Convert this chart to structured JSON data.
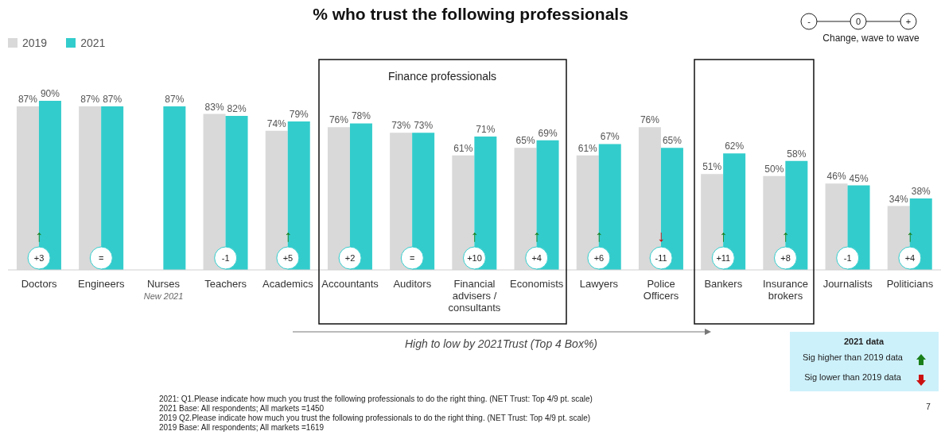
{
  "chart_data": {
    "type": "bar",
    "title": "% who trust the following professionals",
    "categories": [
      "Doctors",
      "Engineers",
      "Nurses",
      "Teachers",
      "Academics",
      "Accountants",
      "Auditors",
      "Financial advisers / consultants",
      "Economists",
      "Lawyers",
      "Police Officers",
      "Bankers",
      "Insurance brokers",
      "Journalists",
      "Politicians"
    ],
    "series": [
      {
        "name": "2019",
        "color": "#d9d9d9",
        "values": [
          87,
          87,
          null,
          83,
          74,
          76,
          73,
          61,
          65,
          61,
          76,
          51,
          50,
          46,
          34
        ],
        "value_labels": [
          "87%",
          "87%",
          null,
          "83%",
          "74%",
          "76%",
          "73%",
          "61%",
          "65%",
          "61%",
          "76%",
          "51%",
          "50%",
          "46%",
          "34%"
        ]
      },
      {
        "name": "2021",
        "color": "#33cccc",
        "values": [
          90,
          87,
          87,
          82,
          79,
          78,
          73,
          71,
          69,
          67,
          65,
          62,
          58,
          45,
          38
        ],
        "value_labels": [
          "90%",
          "87%",
          "87%",
          "82%",
          "79%",
          "78%",
          "73%",
          "71%",
          "69%",
          "67%",
          "65%",
          "62%",
          "58%",
          "45%",
          "38%"
        ]
      }
    ],
    "legend": "top left",
    "annotations": [
      "Finance professionals",
      "New 2021",
      "High to low by 2021Trust (Top 4 Box%)",
      "-",
      "0",
      "+",
      "Change, wave to wave",
      "2021 data",
      "Sig higher than 2019 data",
      "Sig lower than 2019 data",
      "2021: Q1.Please indicate how much you trust the following professionals to do the right thing. (NET Trust: Top 4/9 pt. scale)",
      "2021 Base: All respondents; All markets =1450",
      "2019 Q2.Please indicate how much you trust the following professionals to do the right thing. (NET Trust: Top 4/9 pt. scale)",
      "2019 Base: All respondents; All markets =1619",
      "7",
      {
        "text": "+3",
        "x": "Doctors"
      },
      {
        "text": "↑",
        "x": "Doctors"
      },
      {
        "text": "=",
        "x": "Engineers"
      },
      {
        "text": "-1",
        "x": "Teachers"
      },
      {
        "text": "+5",
        "x": "Academics"
      },
      {
        "text": "↑",
        "x": "Academics"
      },
      {
        "text": "+2",
        "x": "Accountants"
      },
      {
        "text": "=",
        "x": "Auditors"
      },
      {
        "text": "+10",
        "x": "Financial advisers / consultants"
      },
      {
        "text": "↑",
        "x": "Financial advisers / consultants"
      },
      {
        "text": "+4",
        "x": "Economists"
      },
      {
        "text": "↑",
        "x": "Economists"
      },
      {
        "text": "+6",
        "x": "Lawyers"
      },
      {
        "text": "↑",
        "x": "Lawyers"
      },
      {
        "text": "-11",
        "x": "Police Officers"
      },
      {
        "text": "↓",
        "x": "Police Officers"
      },
      {
        "text": "+11",
        "x": "Bankers"
      },
      {
        "text": "↑",
        "x": "Bankers"
      },
      {
        "text": "+8",
        "x": "Insurance brokers"
      },
      {
        "text": "↑",
        "x": "Insurance brokers"
      },
      {
        "text": "-1",
        "x": "Journalists"
      },
      {
        "text": "+4",
        "x": "Politicians"
      },
      {
        "text": "↑",
        "x": "Politicians"
      }
    ]
  }
}
